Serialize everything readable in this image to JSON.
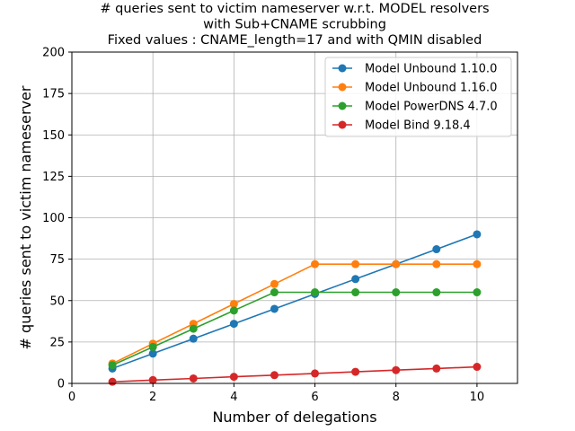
{
  "chart_data": {
    "type": "line",
    "title_lines": [
      "# queries sent to victim nameserver w.r.t. MODEL resolvers",
      "with Sub+CNAME scrubbing",
      "Fixed values : CNAME_length=17 and  with QMIN disabled"
    ],
    "xlabel": "Number of delegations",
    "ylabel": "# queries sent to victim nameserver",
    "xlim": [
      0,
      11
    ],
    "ylim": [
      0,
      200
    ],
    "xticks": [
      0,
      2,
      4,
      6,
      8,
      10
    ],
    "yticks": [
      0,
      25,
      50,
      75,
      100,
      125,
      150,
      175,
      200
    ],
    "xtick_labels": [
      "0",
      "2",
      "4",
      "6",
      "8",
      "10"
    ],
    "ytick_labels": [
      "0",
      "25",
      "50",
      "75",
      "100",
      "125",
      "150",
      "175",
      "200"
    ],
    "grid": true,
    "legend_position": "top-right",
    "x": [
      1,
      2,
      3,
      4,
      5,
      6,
      7,
      8,
      9,
      10
    ],
    "series": [
      {
        "name": "Model Unbound 1.10.0",
        "color": "#1f77b4",
        "values": [
          9,
          18,
          27,
          36,
          45,
          54,
          63,
          72,
          81,
          90
        ]
      },
      {
        "name": "Model Unbound 1.16.0",
        "color": "#ff7f0e",
        "values": [
          12,
          24,
          36,
          48,
          60,
          72,
          72,
          72,
          72,
          72
        ]
      },
      {
        "name": "Model PowerDNS 4.7.0",
        "color": "#2ca02c",
        "values": [
          11,
          22,
          33,
          44,
          55,
          55,
          55,
          55,
          55,
          55
        ]
      },
      {
        "name": "Model Bind 9.18.4",
        "color": "#d62728",
        "values": [
          1,
          2,
          3,
          4,
          5,
          6,
          7,
          8,
          9,
          10
        ]
      }
    ]
  }
}
